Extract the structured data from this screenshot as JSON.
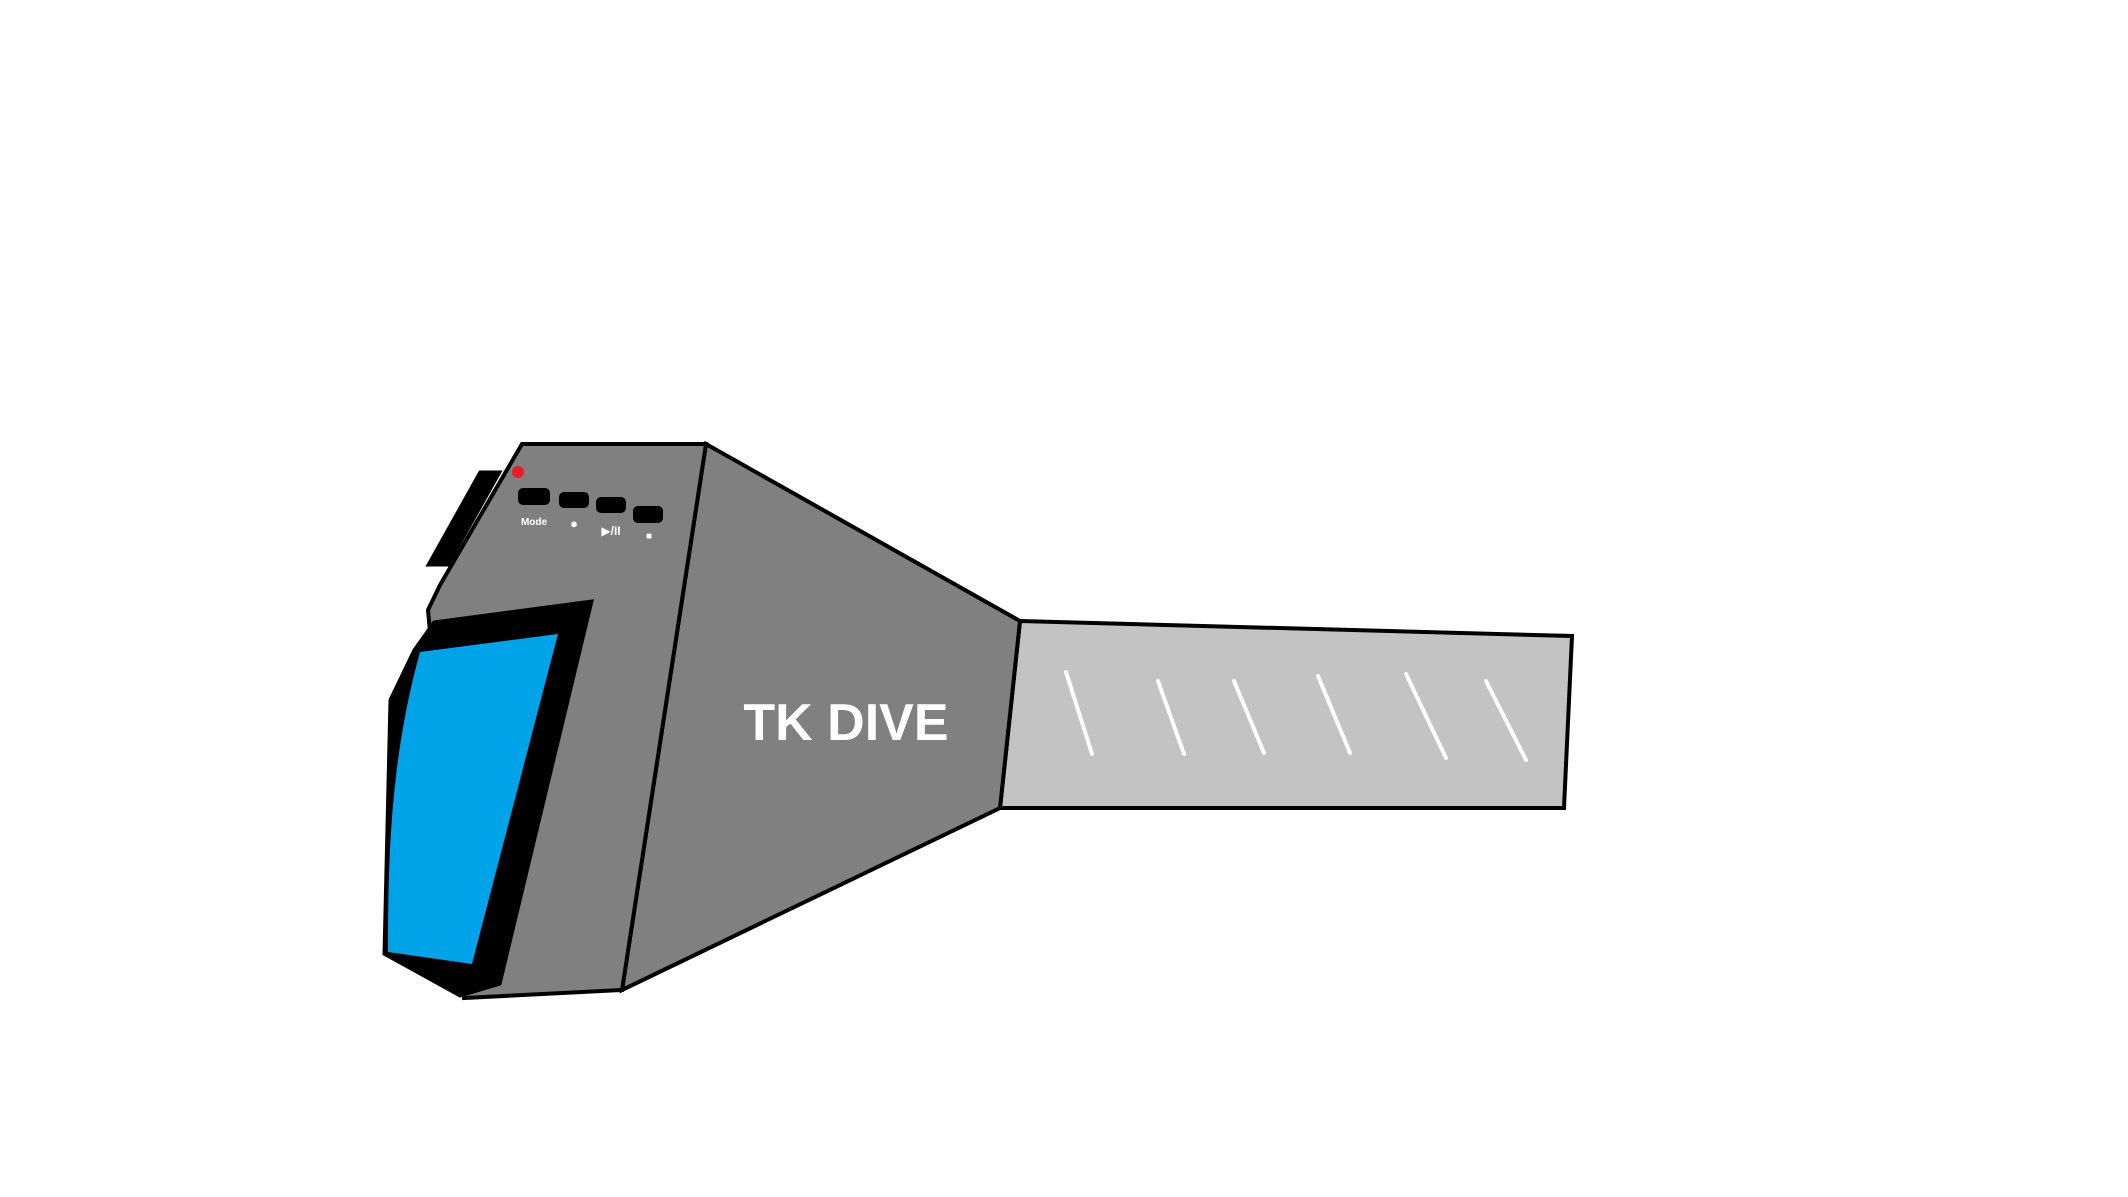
{
  "device": {
    "brand": "TK DIVE",
    "buttons": [
      {
        "name": "mode-button",
        "label": "Mode"
      },
      {
        "name": "record-button",
        "label": "●"
      },
      {
        "name": "play-pause-button",
        "label": "▶/II"
      },
      {
        "name": "stop-button",
        "label": "■"
      }
    ],
    "indicator": {
      "state": "on"
    }
  },
  "colors": {
    "body": "#808080",
    "handle": "#c3c3c3",
    "screen": "#00a2e8",
    "outline": "#000000",
    "indicator": "#ed1c24",
    "grip_lines": "#ffffff",
    "label_text": "#ffffff"
  }
}
